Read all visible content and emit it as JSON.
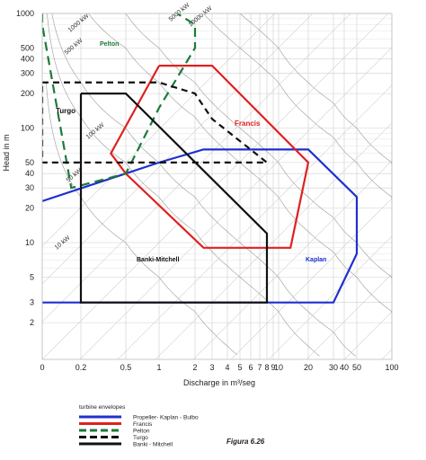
{
  "chart_data": {
    "type": "line",
    "ylabel": "Head in m",
    "xlabel": "Discharge in m³/seg",
    "x_ticks": [
      "0",
      "0.2",
      "0.5",
      "1",
      "2",
      "3",
      "4",
      "5",
      "6",
      "7",
      "8",
      "9",
      "10",
      "20",
      "30",
      "40",
      "50",
      "100"
    ],
    "y_ticks": [
      "2",
      "3",
      "5",
      "10",
      "20",
      "30",
      "40",
      "50",
      "100",
      "200",
      "300",
      "400",
      "500",
      "1000"
    ],
    "power_lines": [
      {
        "label": "10 kW",
        "kw": 10
      },
      {
        "label": "50 kW",
        "kw": 50
      },
      {
        "label": "100 kW",
        "kw": 100
      },
      {
        "label": "500 kW",
        "kw": 500
      },
      {
        "label": "1000 kW",
        "kw": 1000
      },
      {
        "label": "5000 kW",
        "kw": 5000
      },
      {
        "label": "10000 kW",
        "kw": 10000
      }
    ],
    "series": [
      {
        "name": "Propeller- Kaplan - Bulbo",
        "label": "Kaplan",
        "color": "#1f2fd0",
        "style": "solid",
        "points": [
          [
            0,
            23
          ],
          [
            1,
            50
          ],
          [
            2.5,
            65
          ],
          [
            20,
            65
          ],
          [
            50,
            25
          ],
          [
            50,
            8
          ],
          [
            30,
            3
          ],
          [
            0,
            3
          ]
        ]
      },
      {
        "name": "Francis",
        "label": "Francis",
        "color": "#e02020",
        "style": "solid",
        "points": [
          [
            1,
            350
          ],
          [
            3,
            350
          ],
          [
            20,
            50
          ],
          [
            14,
            9
          ],
          [
            2.5,
            9
          ],
          [
            0.5,
            40
          ],
          [
            0.4,
            60
          ],
          [
            1,
            350
          ]
        ]
      },
      {
        "name": "Pelton",
        "label": "Pelton",
        "color": "#1a7a3a",
        "style": "dashed",
        "points": [
          [
            0,
            1000
          ],
          [
            0,
            800
          ],
          [
            0.15,
            30
          ],
          [
            0.5,
            40
          ],
          [
            1,
            150
          ],
          [
            2,
            500
          ],
          [
            2,
            800
          ],
          [
            1.5,
            1000
          ]
        ]
      },
      {
        "name": "Turgo",
        "label": "Turgo",
        "color": "#111111",
        "style": "dashed",
        "points": [
          [
            0,
            250
          ],
          [
            1,
            250
          ],
          [
            2,
            200
          ],
          [
            3,
            120
          ],
          [
            8,
            50
          ],
          [
            0,
            50
          ],
          [
            0,
            250
          ]
        ]
      },
      {
        "name": "Banki - Mitchell",
        "label": "Banki-Mitchell",
        "color": "#111111",
        "style": "solid",
        "points": [
          [
            0.2,
            200
          ],
          [
            0.5,
            200
          ],
          [
            8,
            12
          ],
          [
            8,
            3
          ],
          [
            0.2,
            3
          ],
          [
            0.2,
            200
          ]
        ]
      }
    ]
  },
  "legend": {
    "title": "turbine envelopes",
    "items": [
      {
        "label": "Propeller- Kaplan - Bulbo",
        "color": "#1f2fd0",
        "style": "solid"
      },
      {
        "label": "Francis",
        "color": "#e02020",
        "style": "solid"
      },
      {
        "label": "Pelton",
        "color": "#1a7a3a",
        "style": "dashed"
      },
      {
        "label": "Turgo",
        "color": "#111111",
        "style": "dashed"
      },
      {
        "label": "Banki - Mitchell",
        "color": "#111111",
        "style": "solid"
      }
    ]
  },
  "figure_label": "Figura 6.26"
}
